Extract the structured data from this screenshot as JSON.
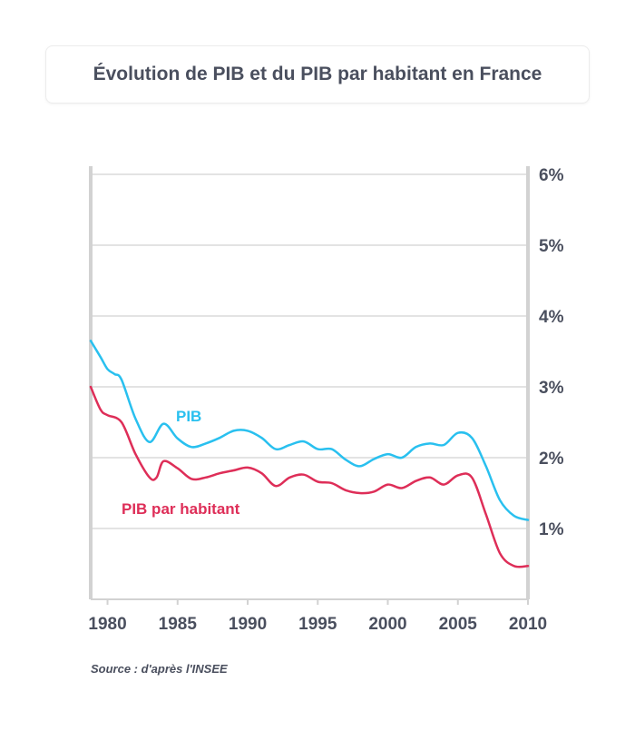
{
  "chart_data": {
    "type": "line",
    "title": "Évolution de PIB et du PIB par habitant en France",
    "source": "Source : d'après l'INSEE",
    "xlim": [
      1978.8,
      2010
    ],
    "ylim": [
      0,
      6
    ],
    "x_ticks": [
      1980,
      1985,
      1990,
      1995,
      2000,
      2005,
      2010
    ],
    "x_tick_labels": [
      "1980",
      "1985",
      "1990",
      "1995",
      "2000",
      "2005",
      "2010"
    ],
    "y_ticks": [
      1,
      2,
      3,
      4,
      5,
      6
    ],
    "y_tick_labels": [
      "1%",
      "2%",
      "3%",
      "4%",
      "5%",
      "6%"
    ],
    "y_axis_position": "right",
    "grid": true,
    "series": [
      {
        "name": "PIB",
        "color": "#29c0ef",
        "x": [
          1978.8,
          1979.5,
          1980,
          1980.5,
          1981,
          1982,
          1983,
          1984,
          1985,
          1986,
          1987,
          1988,
          1989,
          1990,
          1991,
          1992,
          1993,
          1994,
          1995,
          1996,
          1997,
          1998,
          1999,
          2000,
          2001,
          2002,
          2003,
          2004,
          2005,
          2006,
          2007,
          2008,
          2009,
          2010
        ],
        "values": [
          3.65,
          3.42,
          3.25,
          3.18,
          3.1,
          2.55,
          2.22,
          2.48,
          2.27,
          2.15,
          2.2,
          2.28,
          2.38,
          2.38,
          2.28,
          2.12,
          2.18,
          2.23,
          2.12,
          2.12,
          1.97,
          1.88,
          1.98,
          2.05,
          2.0,
          2.15,
          2.2,
          2.18,
          2.35,
          2.28,
          1.88,
          1.4,
          1.18,
          1.12
        ]
      },
      {
        "name": "PIB par habitant",
        "color": "#de2e58",
        "x": [
          1978.8,
          1979.5,
          1980,
          1981,
          1982,
          1983,
          1983.5,
          1984,
          1985,
          1986,
          1987,
          1988,
          1989,
          1990,
          1991,
          1992,
          1993,
          1994,
          1995,
          1996,
          1997,
          1998,
          1999,
          2000,
          2001,
          2002,
          2003,
          2004,
          2005,
          2006,
          2007,
          2008,
          2009,
          2010
        ],
        "values": [
          3.0,
          2.68,
          2.6,
          2.5,
          2.05,
          1.72,
          1.72,
          1.95,
          1.85,
          1.7,
          1.72,
          1.78,
          1.82,
          1.86,
          1.78,
          1.6,
          1.72,
          1.76,
          1.66,
          1.64,
          1.54,
          1.5,
          1.52,
          1.62,
          1.57,
          1.67,
          1.72,
          1.62,
          1.75,
          1.72,
          1.2,
          0.65,
          0.47,
          0.47
        ]
      }
    ]
  }
}
